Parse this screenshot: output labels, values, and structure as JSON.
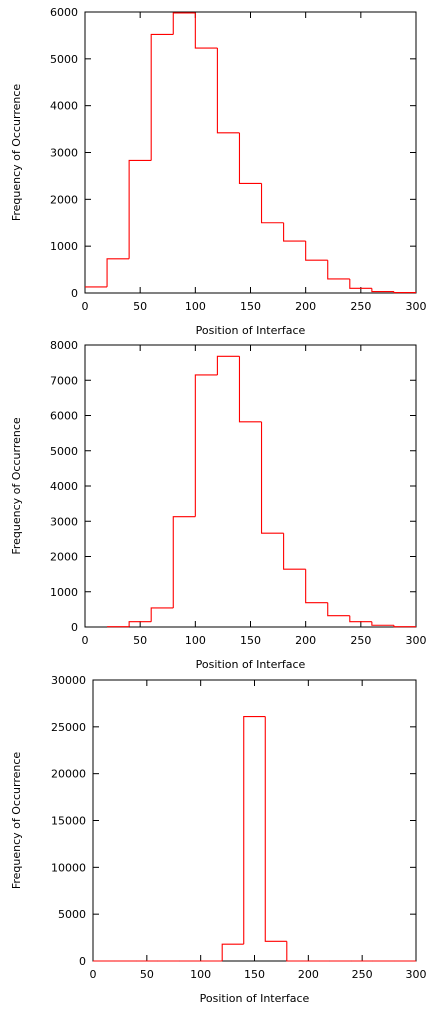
{
  "chart_data": [
    {
      "type": "histogram",
      "xlabel": "Position of Interface",
      "ylabel": "Frequency of Occurrence",
      "xlim": [
        0,
        300
      ],
      "ylim": [
        0,
        6000
      ],
      "xticks": [
        0,
        50,
        100,
        150,
        200,
        250,
        300
      ],
      "yticks": [
        0,
        1000,
        2000,
        3000,
        4000,
        5000,
        6000
      ],
      "bin_width": 20,
      "bins": [
        0,
        20,
        40,
        60,
        80,
        100,
        120,
        140,
        160,
        180,
        200,
        220,
        240,
        260,
        280
      ],
      "values": [
        130,
        730,
        2830,
        5520,
        5980,
        5230,
        3420,
        2340,
        1500,
        1110,
        700,
        300,
        100,
        30,
        10
      ],
      "color": "#ff0000"
    },
    {
      "type": "histogram",
      "xlabel": "Position of Interface",
      "ylabel": "Frequency of Occurrence",
      "xlim": [
        0,
        300
      ],
      "ylim": [
        0,
        8000
      ],
      "xticks": [
        0,
        50,
        100,
        150,
        200,
        250,
        300
      ],
      "yticks": [
        0,
        1000,
        2000,
        3000,
        4000,
        5000,
        6000,
        7000,
        8000
      ],
      "bin_width": 20,
      "bins": [
        20,
        40,
        60,
        80,
        100,
        120,
        140,
        160,
        180,
        200,
        220,
        240,
        260,
        280
      ],
      "values": [
        10,
        150,
        540,
        3130,
        7150,
        7680,
        5820,
        2660,
        1640,
        690,
        320,
        150,
        50,
        10
      ],
      "color": "#ff0000"
    },
    {
      "type": "histogram",
      "xlabel": "Position of Interface",
      "ylabel": "Frequency of Occurrence",
      "xlim": [
        0,
        300
      ],
      "ylim": [
        0,
        30000
      ],
      "xticks": [
        0,
        50,
        100,
        150,
        200,
        250,
        300
      ],
      "yticks": [
        0,
        5000,
        10000,
        15000,
        20000,
        25000,
        30000
      ],
      "bin_width": 20,
      "bins": [
        0,
        20,
        40,
        60,
        80,
        100,
        120,
        140,
        160,
        180,
        200,
        220,
        240,
        260,
        280
      ],
      "values": [
        0,
        0,
        0,
        0,
        0,
        0,
        1800,
        26100,
        2100,
        0,
        0,
        0,
        0,
        0,
        0
      ],
      "color": "#ff0000"
    }
  ]
}
